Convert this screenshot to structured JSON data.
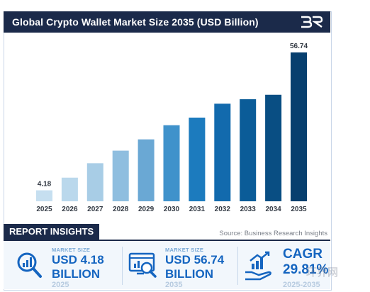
{
  "header": {
    "title": "Global Crypto Wallet Market Size 2035 (USD Billion)"
  },
  "chart_data": {
    "type": "bar",
    "title": "Global Crypto Wallet Market Size 2035 (USD Billion)",
    "categories": [
      "2025",
      "2026",
      "2027",
      "2028",
      "2029",
      "2030",
      "2031",
      "2032",
      "2033",
      "2034",
      "2035"
    ],
    "values": [
      4.18,
      9.0,
      14.5,
      19.3,
      23.6,
      29.0,
      31.9,
      37.2,
      38.9,
      40.6,
      56.74
    ],
    "data_labels": [
      "4.18",
      "",
      "",
      "",
      "",
      "",
      "",
      "",
      "",
      "",
      "56.74"
    ],
    "bar_colors": [
      "#c6dff0",
      "#bad8ec",
      "#a8cde6",
      "#8fbedf",
      "#6aa8d4",
      "#3f92cb",
      "#1c7bbe",
      "#126aad",
      "#0b5c98",
      "#094e83",
      "#073f6e"
    ],
    "xlabel": "",
    "ylabel": "",
    "ylim": [
      0,
      60
    ],
    "grid": false,
    "legend": "none"
  },
  "source": "Source: Business Research Insights",
  "report_insights": {
    "heading": "REPORT INSIGHTS",
    "cards": [
      {
        "small": "MARKET SIZE",
        "line1": "USD 4.18",
        "line2": "BILLION",
        "year": "2025",
        "icon": "magnifier-chart-icon"
      },
      {
        "small": "MARKET SIZE",
        "line1": "USD 56.74",
        "line2": "BILLION",
        "year": "2035",
        "icon": "monitor-chart-icon"
      },
      {
        "small": "",
        "line1": "CAGR",
        "line2": "29.81%",
        "year": "2025-2035",
        "icon": "hand-growth-icon"
      }
    ]
  },
  "watermark": "环界网",
  "colors": {
    "navy": "#1b2a4a",
    "accent_blue": "#1565c0"
  }
}
